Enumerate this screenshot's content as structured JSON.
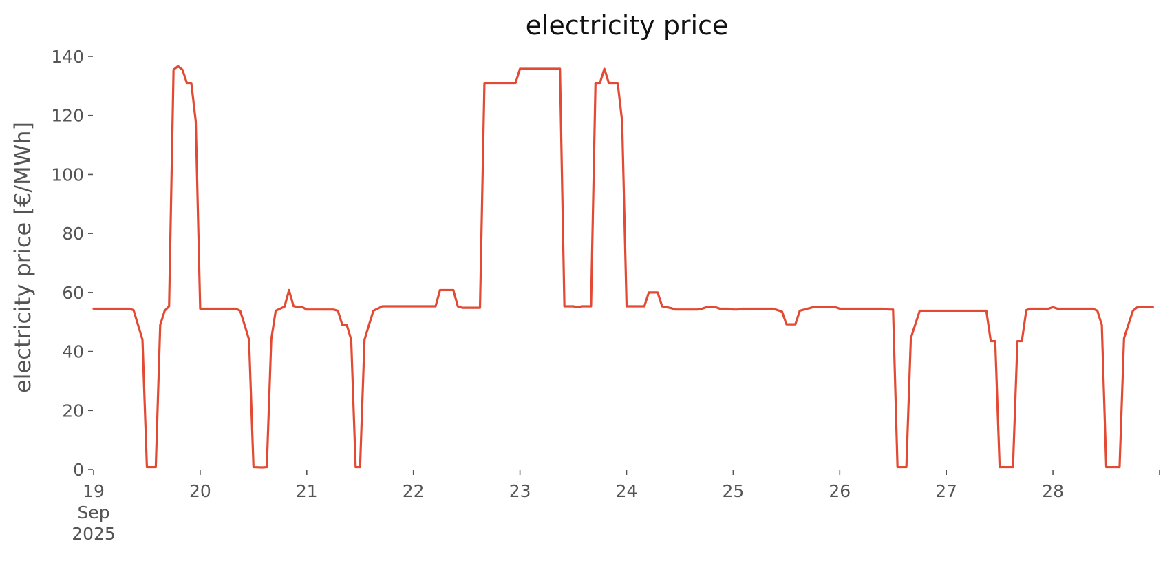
{
  "chart_data": {
    "type": "line",
    "title": "electricity price",
    "xlabel": "",
    "ylabel": "electricity price [€/MWh]",
    "ylim": [
      0,
      140
    ],
    "xlim": [
      0,
      238.5
    ],
    "grid": false,
    "legend": "none",
    "colors": {
      "line": "#E24A33",
      "text": "#555555",
      "title": "#111111"
    },
    "y_ticks": [
      0,
      20,
      40,
      60,
      80,
      100,
      120,
      140
    ],
    "x_ticks": [
      {
        "x": 0,
        "lines": [
          "19",
          "Sep",
          "2025"
        ]
      },
      {
        "x": 24,
        "lines": [
          "20"
        ]
      },
      {
        "x": 48,
        "lines": [
          "21"
        ]
      },
      {
        "x": 72,
        "lines": [
          "22"
        ]
      },
      {
        "x": 96,
        "lines": [
          "23"
        ]
      },
      {
        "x": 120,
        "lines": [
          "24"
        ]
      },
      {
        "x": 144,
        "lines": [
          "25"
        ]
      },
      {
        "x": 168,
        "lines": [
          "26"
        ]
      },
      {
        "x": 192,
        "lines": [
          "27"
        ]
      },
      {
        "x": 216,
        "lines": [
          "28"
        ]
      },
      {
        "x": 240,
        "lines": []
      }
    ],
    "series": [
      {
        "points": [
          [
            0,
            54.5
          ],
          [
            8,
            54.5
          ],
          [
            9,
            54
          ],
          [
            11,
            44
          ],
          [
            12,
            0.8
          ],
          [
            14,
            0.8
          ],
          [
            15,
            49
          ],
          [
            16,
            53.8
          ],
          [
            17,
            55.3
          ],
          [
            18,
            135.5
          ],
          [
            19,
            136.7
          ],
          [
            20,
            135.5
          ],
          [
            21,
            131
          ],
          [
            22,
            131
          ],
          [
            23,
            118
          ],
          [
            24,
            54.5
          ],
          [
            32,
            54.5
          ],
          [
            33,
            53.8
          ],
          [
            34,
            49
          ],
          [
            35,
            44
          ],
          [
            36,
            0.8
          ],
          [
            38,
            0.7
          ],
          [
            39,
            0.8
          ],
          [
            40,
            44
          ],
          [
            41,
            53.8
          ],
          [
            42,
            54.5
          ],
          [
            43,
            55.2
          ],
          [
            44,
            60.8
          ],
          [
            45,
            55.4
          ],
          [
            46,
            55
          ],
          [
            47,
            55
          ],
          [
            48,
            54.2
          ],
          [
            54,
            54.2
          ],
          [
            55,
            53.8
          ],
          [
            56,
            49
          ],
          [
            57,
            49
          ],
          [
            58,
            44
          ],
          [
            59,
            0.8
          ],
          [
            60,
            0.8
          ],
          [
            61,
            44
          ],
          [
            62,
            49
          ],
          [
            63,
            53.8
          ],
          [
            65,
            55.3
          ],
          [
            77,
            55.3
          ],
          [
            78,
            60.8
          ],
          [
            81,
            60.8
          ],
          [
            82,
            55.3
          ],
          [
            83,
            54.8
          ],
          [
            87,
            54.8
          ],
          [
            88,
            131
          ],
          [
            95,
            131
          ],
          [
            96,
            135.8
          ],
          [
            105,
            135.8
          ],
          [
            106,
            55.3
          ],
          [
            108,
            55.3
          ],
          [
            109,
            55
          ],
          [
            110,
            55.3
          ],
          [
            112,
            55.3
          ],
          [
            113,
            131
          ],
          [
            114,
            131
          ],
          [
            115,
            135.8
          ],
          [
            116,
            131
          ],
          [
            118,
            131
          ],
          [
            119,
            118
          ],
          [
            120,
            55.3
          ],
          [
            124,
            55.3
          ],
          [
            125,
            60
          ],
          [
            127,
            60
          ],
          [
            128,
            55.3
          ],
          [
            130,
            54.7
          ],
          [
            131,
            54.2
          ],
          [
            136,
            54.2
          ],
          [
            137,
            54.5
          ],
          [
            138,
            55
          ],
          [
            140,
            55
          ],
          [
            141,
            54.5
          ],
          [
            143,
            54.5
          ],
          [
            144,
            54.2
          ],
          [
            145,
            54.2
          ],
          [
            146,
            54.5
          ],
          [
            153,
            54.5
          ],
          [
            155,
            53.5
          ],
          [
            156,
            49.2
          ],
          [
            158,
            49.2
          ],
          [
            159,
            53.8
          ],
          [
            162,
            55
          ],
          [
            167,
            55
          ],
          [
            168,
            54.5
          ],
          [
            178,
            54.5
          ],
          [
            179,
            54.2
          ],
          [
            180,
            54.2
          ],
          [
            181,
            0.8
          ],
          [
            183,
            0.8
          ],
          [
            184,
            44.5
          ],
          [
            186,
            53.8
          ],
          [
            201,
            53.8
          ],
          [
            202,
            43.5
          ],
          [
            203,
            43.5
          ],
          [
            204,
            0.8
          ],
          [
            207,
            0.8
          ],
          [
            208,
            43.5
          ],
          [
            209,
            43.5
          ],
          [
            210,
            54
          ],
          [
            211,
            54.5
          ],
          [
            215,
            54.5
          ],
          [
            216,
            55
          ],
          [
            217,
            54.5
          ],
          [
            225,
            54.5
          ],
          [
            226,
            53.8
          ],
          [
            227,
            49
          ],
          [
            228,
            0.8
          ],
          [
            231,
            0.8
          ],
          [
            232,
            44.5
          ],
          [
            234,
            53.8
          ],
          [
            235,
            55
          ],
          [
            238.5,
            55
          ]
        ]
      }
    ]
  }
}
